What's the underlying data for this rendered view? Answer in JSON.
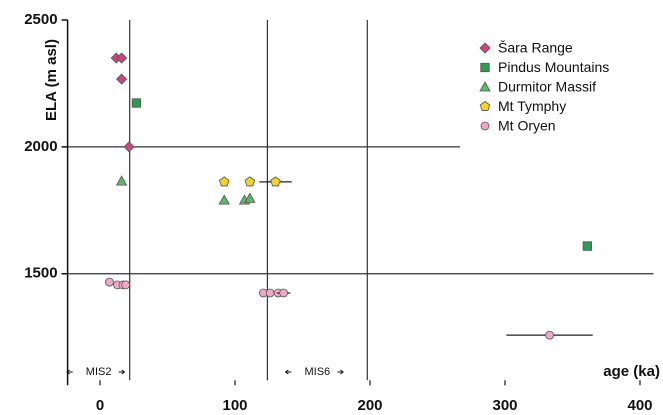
{
  "chart_data": {
    "type": "scatter",
    "x_label": "age (ka)",
    "y_label": "ELA (m asl)",
    "xlim": [
      -24,
      410
    ],
    "ylim": [
      1080,
      2500
    ],
    "xticks": [
      0,
      100,
      200,
      300,
      400
    ],
    "yticks": [
      1500,
      2000,
      2500
    ],
    "hlines": [
      2000,
      1500
    ],
    "vlines": [
      22,
      124,
      198
    ],
    "annotations": [
      "MIS2",
      "MIS6"
    ],
    "legend": "top-right",
    "series": [
      {
        "name": "Šara Range",
        "color": "#c9477e",
        "marker": "diamond",
        "x": [
          12,
          16,
          16,
          21.5
        ],
        "values": [
          2350,
          2350,
          2267,
          2000
        ]
      },
      {
        "name": "Pindus Mountains",
        "color": "#2f9a55",
        "marker": "square",
        "x": [
          27,
          361
        ],
        "values": [
          2173,
          1609
        ]
      },
      {
        "name": "Durmitor Massif",
        "color": "#5db56a",
        "marker": "triangle",
        "x": [
          16,
          92,
          107,
          111
        ],
        "values": [
          1865,
          1790,
          1790,
          1797
        ]
      },
      {
        "name": "Mt Tymphy",
        "color": "#f2d130",
        "marker": "pentagon",
        "x": [
          92,
          111,
          130
        ],
        "values": [
          1862,
          1862,
          1862
        ],
        "xerr": [
          null,
          null,
          12
        ]
      },
      {
        "name": "Mt Oryen",
        "color": "#f1a8c6",
        "marker": "circle",
        "x": [
          7,
          13,
          17,
          19,
          121,
          126,
          132,
          136,
          333
        ],
        "values": [
          1467,
          1456,
          1456,
          1456,
          1424,
          1424,
          1424,
          1424,
          1258
        ],
        "xerr": [
          null,
          null,
          null,
          null,
          null,
          null,
          null,
          5,
          32
        ]
      }
    ]
  }
}
